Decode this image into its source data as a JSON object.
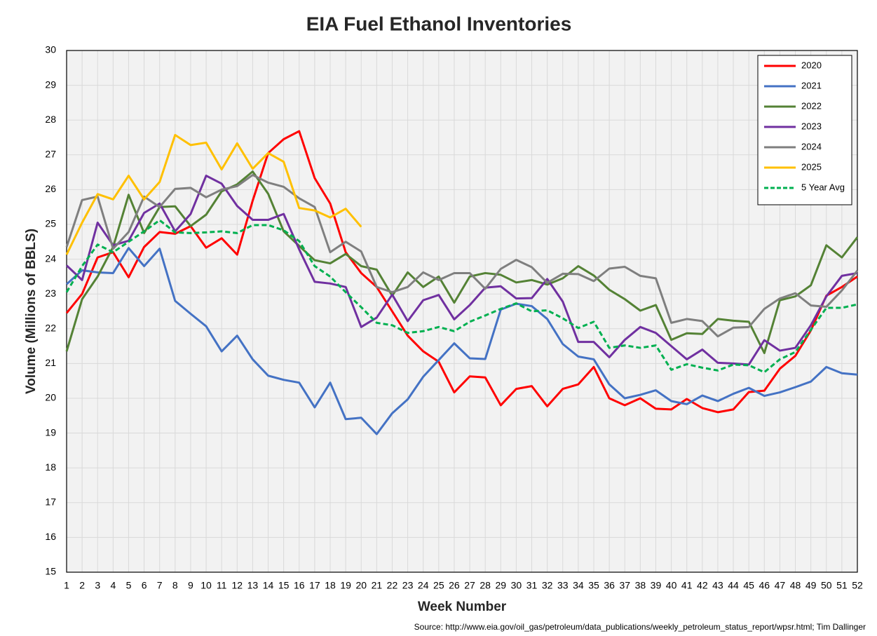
{
  "chart_data": {
    "type": "line",
    "title": "EIA Fuel Ethanol Inventories",
    "x_label": "Week Number",
    "y_label": "Volume (Millions of BBLS)",
    "source": "Source: http://www.eia.gov/oil_gas/petroleum/data_publications/weekly_petroleum_status_report/wpsr.html; Tim Dallinger",
    "x": [
      1,
      2,
      3,
      4,
      5,
      6,
      7,
      8,
      9,
      10,
      11,
      12,
      13,
      14,
      15,
      16,
      17,
      18,
      19,
      20,
      21,
      22,
      23,
      24,
      25,
      26,
      27,
      28,
      29,
      30,
      31,
      32,
      33,
      34,
      35,
      36,
      37,
      38,
      39,
      40,
      41,
      42,
      43,
      44,
      45,
      46,
      47,
      48,
      49,
      50,
      51,
      52
    ],
    "xlim": [
      1,
      52
    ],
    "xticks": [
      1,
      2,
      3,
      4,
      5,
      6,
      7,
      8,
      9,
      10,
      11,
      12,
      13,
      14,
      15,
      16,
      17,
      18,
      19,
      20,
      21,
      22,
      23,
      24,
      25,
      26,
      27,
      28,
      29,
      30,
      31,
      32,
      33,
      34,
      35,
      36,
      37,
      38,
      39,
      40,
      41,
      42,
      43,
      44,
      45,
      46,
      47,
      48,
      49,
      50,
      51,
      52
    ],
    "ylim": [
      15,
      30
    ],
    "yticks": [
      15,
      16,
      17,
      18,
      19,
      20,
      21,
      22,
      23,
      24,
      25,
      26,
      27,
      28,
      29,
      30
    ],
    "grid": true,
    "legend": "top-right",
    "series": [
      {
        "name": "2020",
        "color": "#ff0000",
        "dashed": false,
        "values": [
          22.45,
          23.0,
          24.05,
          24.2,
          23.48,
          24.35,
          24.78,
          24.73,
          24.95,
          24.33,
          24.6,
          24.13,
          25.68,
          27.05,
          27.45,
          27.68,
          26.33,
          25.6,
          24.2,
          23.6,
          23.2,
          22.5,
          21.8,
          21.35,
          21.05,
          20.17,
          20.63,
          20.6,
          19.8,
          20.27,
          20.35,
          19.77,
          20.27,
          20.4,
          20.9,
          20.0,
          19.8,
          20.0,
          19.7,
          19.68,
          19.98,
          19.72,
          19.6,
          19.68,
          20.18,
          20.22,
          20.85,
          21.22,
          21.95,
          22.95,
          23.2,
          23.5
        ]
      },
      {
        "name": "2021",
        "color": "#4472c4",
        "dashed": false,
        "values": [
          23.28,
          23.68,
          23.62,
          23.6,
          24.32,
          23.8,
          24.3,
          22.8,
          22.43,
          22.07,
          21.35,
          21.8,
          21.12,
          20.65,
          20.53,
          20.45,
          19.74,
          20.45,
          19.4,
          19.44,
          18.97,
          19.57,
          19.97,
          20.62,
          21.1,
          21.58,
          21.15,
          21.13,
          22.55,
          22.72,
          22.65,
          22.28,
          21.56,
          21.2,
          21.12,
          20.4,
          20.0,
          20.1,
          20.23,
          19.92,
          19.83,
          20.08,
          19.92,
          20.13,
          20.3,
          20.07,
          20.17,
          20.32,
          20.48,
          20.9,
          20.72,
          20.68
        ]
      },
      {
        "name": "2022",
        "color": "#548235",
        "dashed": false,
        "values": [
          21.35,
          22.85,
          23.5,
          24.35,
          25.85,
          24.75,
          25.5,
          25.52,
          24.95,
          25.28,
          25.95,
          26.15,
          26.52,
          25.88,
          24.8,
          24.38,
          23.97,
          23.88,
          24.15,
          23.8,
          23.7,
          22.95,
          23.62,
          23.2,
          23.5,
          22.75,
          23.5,
          23.6,
          23.55,
          23.33,
          23.4,
          23.27,
          23.45,
          23.8,
          23.53,
          23.12,
          22.85,
          22.52,
          22.68,
          21.68,
          21.87,
          21.85,
          22.28,
          22.23,
          22.2,
          21.3,
          22.82,
          22.93,
          23.25,
          24.4,
          24.05,
          24.63
        ]
      },
      {
        "name": "2023",
        "color": "#7030a0",
        "dashed": false,
        "values": [
          23.82,
          23.4,
          25.05,
          24.4,
          24.53,
          25.33,
          25.6,
          24.8,
          25.3,
          26.4,
          26.17,
          25.53,
          25.13,
          25.13,
          25.3,
          24.28,
          23.35,
          23.3,
          23.2,
          22.05,
          22.32,
          22.98,
          22.22,
          22.82,
          22.97,
          22.27,
          22.68,
          23.18,
          23.22,
          22.87,
          22.88,
          23.43,
          22.78,
          21.62,
          21.62,
          21.18,
          21.68,
          22.05,
          21.88,
          21.5,
          21.12,
          21.4,
          21.02,
          21.0,
          20.97,
          21.67,
          21.37,
          21.45,
          22.1,
          22.93,
          23.52,
          23.6
        ]
      },
      {
        "name": "2024",
        "color": "#7f7f7f",
        "dashed": false,
        "values": [
          24.35,
          25.7,
          25.8,
          24.3,
          24.78,
          25.8,
          25.5,
          26.02,
          26.05,
          25.78,
          26.0,
          26.1,
          26.42,
          26.2,
          26.08,
          25.75,
          25.5,
          24.2,
          24.5,
          24.22,
          23.2,
          23.05,
          23.2,
          23.62,
          23.4,
          23.6,
          23.6,
          23.15,
          23.72,
          23.98,
          23.77,
          23.32,
          23.58,
          23.57,
          23.37,
          23.73,
          23.78,
          23.52,
          23.45,
          22.17,
          22.28,
          22.22,
          21.78,
          22.03,
          22.05,
          22.57,
          22.87,
          23.02,
          22.67,
          22.63,
          23.1,
          23.67
        ]
      },
      {
        "name": "2025",
        "color": "#ffc000",
        "dashed": false,
        "values": [
          24.13,
          25.05,
          25.87,
          25.72,
          26.4,
          25.72,
          26.22,
          27.57,
          27.28,
          27.35,
          26.58,
          27.33,
          26.6,
          27.05,
          26.8,
          25.47,
          25.4,
          25.2,
          25.45,
          24.93,
          null,
          null,
          null,
          null,
          null,
          null,
          null,
          null,
          null,
          null,
          null,
          null,
          null,
          null,
          null,
          null,
          null,
          null,
          null,
          null,
          null,
          null,
          null,
          null,
          null,
          null,
          null,
          null,
          null,
          null,
          null,
          null
        ]
      },
      {
        "name": "5 Year Avg",
        "color": "#00b050",
        "dashed": true,
        "values": [
          23.05,
          23.8,
          24.42,
          24.2,
          24.5,
          24.8,
          25.12,
          24.77,
          24.75,
          24.77,
          24.8,
          24.75,
          24.98,
          24.98,
          24.83,
          24.52,
          23.8,
          23.5,
          23.05,
          22.62,
          22.17,
          22.1,
          21.88,
          21.93,
          22.05,
          21.93,
          22.2,
          22.38,
          22.57,
          22.73,
          22.5,
          22.53,
          22.3,
          22.02,
          22.2,
          21.45,
          21.52,
          21.45,
          21.52,
          20.82,
          20.98,
          20.88,
          20.8,
          20.97,
          20.95,
          20.75,
          21.12,
          21.33,
          21.97,
          22.6,
          22.6,
          22.7
        ]
      }
    ]
  }
}
